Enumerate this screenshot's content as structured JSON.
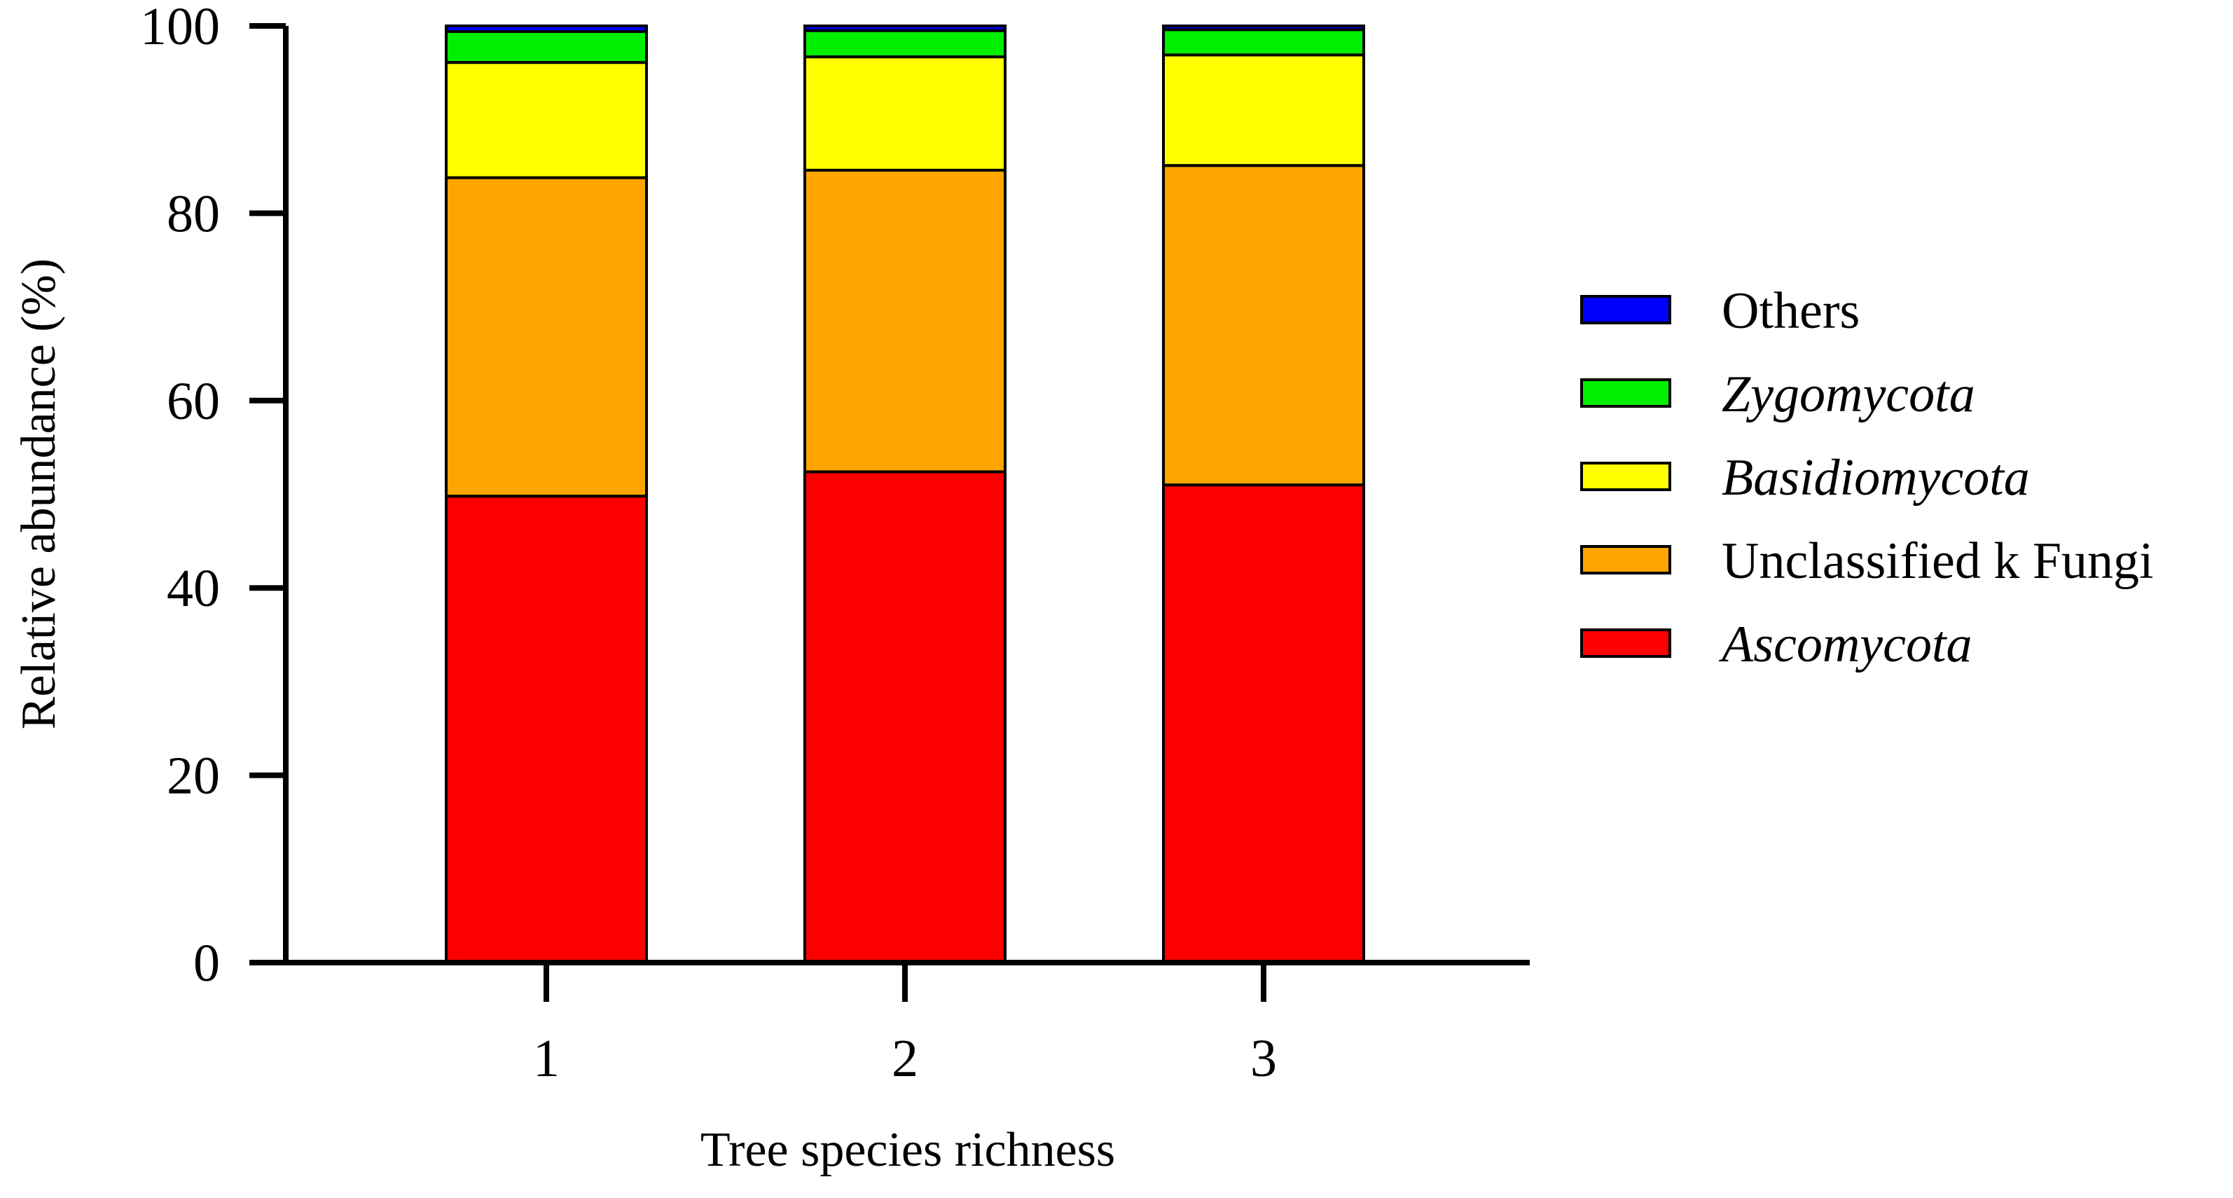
{
  "chart_data": {
    "type": "bar",
    "stacked": true,
    "title": "",
    "xlabel": "Tree species richness",
    "ylabel": "Relative abundance (%)",
    "ylim": [
      0,
      100
    ],
    "yticks": [
      0,
      20,
      40,
      60,
      80,
      100
    ],
    "ytick_labels": [
      "0",
      "20",
      "40",
      "60",
      "80",
      "100"
    ],
    "categories": [
      "1",
      "2",
      "3"
    ],
    "grid": false,
    "legend_position": "right",
    "series": [
      {
        "name": "Ascomycota",
        "italic": true,
        "color": "#ff0000",
        "values": [
          49.8,
          52.4,
          51.0
        ]
      },
      {
        "name": "Unclassified k Fungi",
        "italic": false,
        "color": "#ffa500",
        "values": [
          34.0,
          32.2,
          34.1
        ]
      },
      {
        "name": "Basidiomycota",
        "italic": true,
        "color": "#ffff00",
        "values": [
          12.3,
          12.1,
          11.8
        ]
      },
      {
        "name": "Zygomycota",
        "italic": true,
        "color": "#00ee00",
        "values": [
          3.3,
          2.8,
          2.7
        ]
      },
      {
        "name": "Others",
        "italic": false,
        "color": "#0000ff",
        "values": [
          0.6,
          0.5,
          0.4
        ]
      }
    ],
    "legend_order": [
      "Others",
      "Zygomycota",
      "Basidiomycota",
      "Unclassified k Fungi",
      "Ascomycota"
    ]
  }
}
